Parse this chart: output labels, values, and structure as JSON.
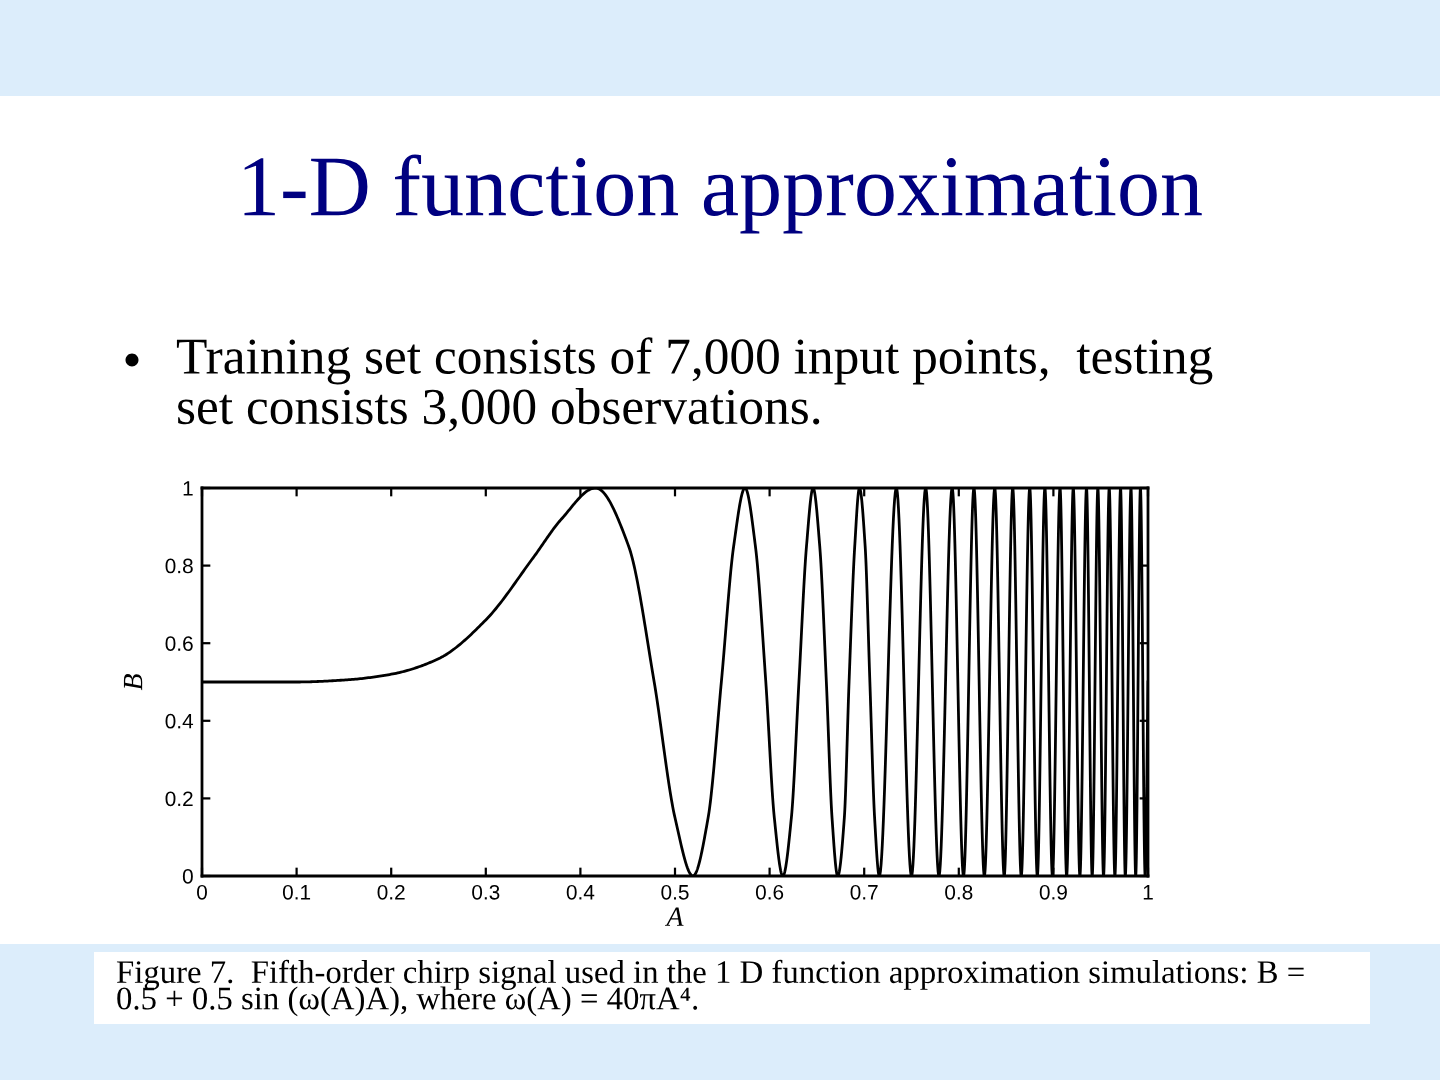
{
  "chart_data": {
    "type": "line",
    "title": "1-D function approximation",
    "subtitle": "Training set consists of 7,000 input points,  testing\nset consists 3,000 observations.",
    "xlabel": "A",
    "ylabel": "B",
    "x": [
      0,
      0.1,
      0.15,
      0.2,
      0.25,
      0.3,
      0.35,
      0.38,
      0.416,
      0.451,
      0.478,
      0.5,
      0.519,
      0.535,
      0.549,
      0.562,
      0.574,
      0.585,
      0.596,
      0.605,
      0.614,
      0.623,
      0.631,
      0.639,
      0.646,
      0.653,
      0.66,
      0.666,
      0.672,
      0.679,
      0.684,
      0.69,
      0.695,
      0.701,
      0.706,
      0.711,
      0.716,
      0.734,
      0.75,
      0.765,
      0.779,
      0.793,
      0.805,
      0.816,
      0.827,
      0.838,
      0.848,
      0.857,
      0.866,
      0.875,
      0.883,
      0.891,
      0.899,
      0.907,
      0.914,
      0.921,
      0.928,
      0.935,
      0.941,
      0.947,
      0.953,
      0.959,
      0.965,
      0.971,
      0.976,
      0.982,
      0.987,
      0.992,
      0.997,
      1
    ],
    "series": [
      {
        "color": "#000000",
        "values": [
          0.5,
          0.5,
          0.505,
          0.52,
          0.56,
          0.66,
          0.82,
          0.92,
          1,
          0.85,
          0.5,
          0.15,
          0,
          0.15,
          0.5,
          0.85,
          1,
          0.85,
          0.5,
          0.15,
          0,
          0.15,
          0.5,
          0.85,
          1,
          0.85,
          0.5,
          0.15,
          0,
          0.15,
          0.5,
          0.85,
          1,
          0.85,
          0.5,
          0.15,
          0,
          1,
          0,
          1,
          0,
          1,
          0,
          1,
          0,
          1,
          0,
          1,
          0,
          1,
          0,
          1,
          0,
          1,
          0,
          1,
          0,
          1,
          0,
          1,
          0,
          1,
          0,
          1,
          0,
          1,
          0,
          1,
          0,
          0.5
        ]
      }
    ],
    "xlim": [
      0,
      1
    ],
    "ylim": [
      0,
      1
    ],
    "xticks": [
      0,
      0.1,
      0.2,
      0.3,
      0.4,
      0.5,
      0.6,
      0.7,
      0.8,
      0.9,
      1
    ],
    "yticks": [
      0,
      0.2,
      0.4,
      0.6,
      0.8,
      1
    ],
    "line_style": "solid",
    "annotations": [
      "Figure 7.  Fifth-order chirp signal used in the 1 D function approximation simulations: B =\n0.5 + 0.5 sin (ω(A)A), where ω(A) = 40πA⁴."
    ]
  }
}
